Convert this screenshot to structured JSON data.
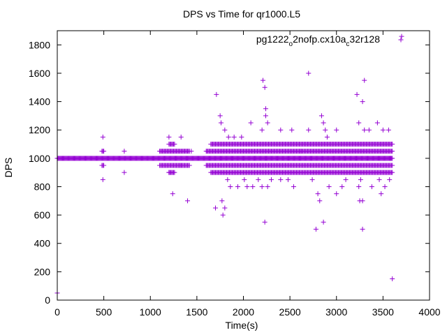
{
  "chart_data": {
    "type": "scatter",
    "title": "DPS vs Time for qr1000.L5",
    "xlabel": "Time(s)",
    "ylabel": "DPS",
    "xlim": [
      0,
      4000
    ],
    "ylim": [
      0,
      1900
    ],
    "xticks": [
      0,
      500,
      1000,
      1500,
      2000,
      2500,
      3000,
      3500,
      4000
    ],
    "yticks": [
      0,
      200,
      400,
      600,
      800,
      1000,
      1200,
      1400,
      1600,
      1800
    ],
    "grid": false,
    "legend": {
      "placement": "top-right",
      "label_parts": [
        "pg1222",
        "o",
        "2nofp.cx10a",
        "c",
        "32r128"
      ]
    },
    "series": [
      {
        "name": "pg1222_o2nofp.cx10a_c32r128",
        "color": "#9400d3",
        "marker": "plus",
        "baseline": {
          "value": 1000,
          "x_from": 0,
          "x_to": 3600,
          "step": 8
        },
        "band_rows": [
          {
            "y": 1050,
            "ranges": [
              [
                480,
                500
              ],
              [
                1100,
                1420
              ],
              [
                1600,
                3600
              ]
            ]
          },
          {
            "y": 950,
            "ranges": [
              [
                480,
                500
              ],
              [
                1100,
                1420
              ],
              [
                1600,
                3600
              ]
            ]
          },
          {
            "y": 1100,
            "ranges": [
              [
                1200,
                1260
              ],
              [
                1650,
                3600
              ]
            ]
          },
          {
            "y": 900,
            "ranges": [
              [
                1200,
                1260
              ],
              [
                1650,
                3600
              ]
            ]
          }
        ],
        "points": [
          [
            0,
            50
          ],
          [
            490,
            1150
          ],
          [
            490,
            850
          ],
          [
            720,
            900
          ],
          [
            720,
            1050
          ],
          [
            1200,
            1150
          ],
          [
            1200,
            900
          ],
          [
            1240,
            750
          ],
          [
            1330,
            1150
          ],
          [
            1330,
            950
          ],
          [
            1400,
            700
          ],
          [
            1440,
            1050
          ],
          [
            1700,
            650
          ],
          [
            1710,
            1450
          ],
          [
            1750,
            1300
          ],
          [
            1760,
            1250
          ],
          [
            1770,
            700
          ],
          [
            1780,
            600
          ],
          [
            1800,
            1200
          ],
          [
            1800,
            650
          ],
          [
            1830,
            850
          ],
          [
            1840,
            1150
          ],
          [
            1860,
            800
          ],
          [
            1900,
            1150
          ],
          [
            1940,
            800
          ],
          [
            1980,
            1150
          ],
          [
            2010,
            850
          ],
          [
            2040,
            800
          ],
          [
            2080,
            1250
          ],
          [
            2100,
            800
          ],
          [
            2160,
            850
          ],
          [
            2200,
            1200
          ],
          [
            2200,
            800
          ],
          [
            2210,
            1550
          ],
          [
            2230,
            1500
          ],
          [
            2230,
            550
          ],
          [
            2240,
            1300
          ],
          [
            2240,
            1350
          ],
          [
            2260,
            1250
          ],
          [
            2260,
            800
          ],
          [
            2300,
            850
          ],
          [
            2400,
            1200
          ],
          [
            2400,
            850
          ],
          [
            2480,
            850
          ],
          [
            2520,
            1200
          ],
          [
            2540,
            800
          ],
          [
            2620,
            1050
          ],
          [
            2700,
            1600
          ],
          [
            2700,
            1200
          ],
          [
            2740,
            850
          ],
          [
            2780,
            500
          ],
          [
            2800,
            750
          ],
          [
            2820,
            700
          ],
          [
            2840,
            1300
          ],
          [
            2860,
            1250
          ],
          [
            2860,
            550
          ],
          [
            2880,
            1200
          ],
          [
            2900,
            1150
          ],
          [
            2920,
            800
          ],
          [
            3000,
            1200
          ],
          [
            3000,
            750
          ],
          [
            3060,
            800
          ],
          [
            3100,
            850
          ],
          [
            3220,
            1450
          ],
          [
            3240,
            1250
          ],
          [
            3240,
            800
          ],
          [
            3250,
            700
          ],
          [
            3260,
            850
          ],
          [
            3280,
            1400
          ],
          [
            3280,
            700
          ],
          [
            3300,
            1550
          ],
          [
            3280,
            500
          ],
          [
            3300,
            1200
          ],
          [
            3350,
            1200
          ],
          [
            3380,
            800
          ],
          [
            3440,
            1250
          ],
          [
            3460,
            850
          ],
          [
            3480,
            750
          ],
          [
            3500,
            1200
          ],
          [
            3520,
            800
          ],
          [
            3560,
            1200
          ],
          [
            3570,
            850
          ],
          [
            3600,
            150
          ],
          [
            3700,
            1860
          ]
        ]
      }
    ]
  }
}
